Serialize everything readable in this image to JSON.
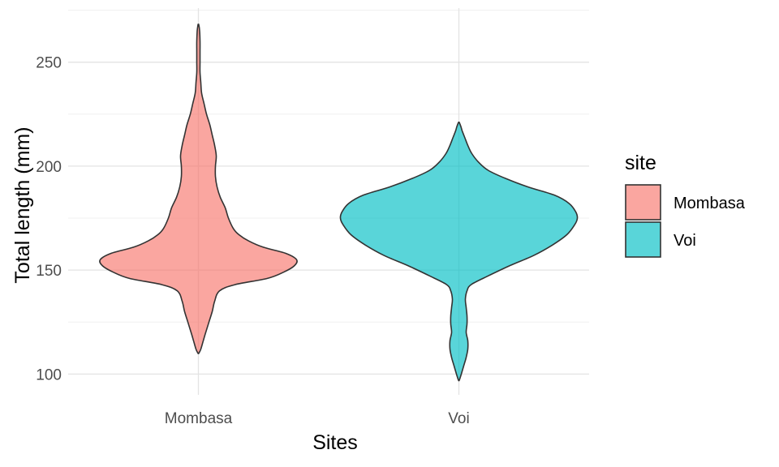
{
  "chart_data": {
    "type": "violin",
    "xlabel": "Sites",
    "ylabel": "Total length (mm)",
    "categories": [
      "Mombasa",
      "Voi"
    ],
    "ylim": [
      90,
      276
    ],
    "yticks": [
      100,
      150,
      200,
      250
    ],
    "grid": true,
    "legend": {
      "title": "site",
      "position": "right",
      "entries": [
        {
          "label": "Mombasa",
          "color": "#F8766D"
        },
        {
          "label": "Voi",
          "color": "#00BFC4"
        }
      ]
    },
    "series": [
      {
        "name": "Mombasa",
        "color": "#F8766D",
        "min": 110,
        "max": 268,
        "profile": [
          [
            110,
            0.5
          ],
          [
            112,
            3
          ],
          [
            116,
            6
          ],
          [
            120,
            9
          ],
          [
            125,
            13
          ],
          [
            130,
            17
          ],
          [
            135,
            20
          ],
          [
            140,
            26
          ],
          [
            143,
            45
          ],
          [
            146,
            85
          ],
          [
            149,
            105
          ],
          [
            152,
            118
          ],
          [
            155,
            121
          ],
          [
            158,
            108
          ],
          [
            161,
            80
          ],
          [
            164,
            62
          ],
          [
            167,
            50
          ],
          [
            170,
            43
          ],
          [
            175,
            37
          ],
          [
            180,
            33
          ],
          [
            185,
            27
          ],
          [
            190,
            23
          ],
          [
            195,
            21
          ],
          [
            200,
            21
          ],
          [
            205,
            22
          ],
          [
            210,
            20
          ],
          [
            215,
            17
          ],
          [
            220,
            14
          ],
          [
            225,
            10
          ],
          [
            230,
            7
          ],
          [
            235,
            4
          ],
          [
            240,
            3
          ],
          [
            245,
            2
          ],
          [
            250,
            2
          ],
          [
            255,
            2
          ],
          [
            260,
            2
          ],
          [
            265,
            1.5
          ],
          [
            268,
            0.5
          ]
        ]
      },
      {
        "name": "Voi",
        "color": "#00BFC4",
        "min": 97,
        "max": 221,
        "profile": [
          [
            97,
            0.5
          ],
          [
            100,
            3
          ],
          [
            104,
            6
          ],
          [
            108,
            9
          ],
          [
            112,
            11
          ],
          [
            116,
            11
          ],
          [
            120,
            9
          ],
          [
            124,
            10
          ],
          [
            128,
            10
          ],
          [
            132,
            9
          ],
          [
            136,
            8
          ],
          [
            140,
            10
          ],
          [
            143,
            15
          ],
          [
            147,
            35
          ],
          [
            152,
            62
          ],
          [
            157,
            92
          ],
          [
            162,
            115
          ],
          [
            167,
            133
          ],
          [
            172,
            143
          ],
          [
            175,
            146
          ],
          [
            178,
            144
          ],
          [
            182,
            136
          ],
          [
            186,
            118
          ],
          [
            190,
            85
          ],
          [
            194,
            58
          ],
          [
            198,
            36
          ],
          [
            202,
            24
          ],
          [
            206,
            16
          ],
          [
            210,
            11
          ],
          [
            214,
            7
          ],
          [
            217,
            4
          ],
          [
            219,
            2.5
          ],
          [
            221,
            0.5
          ]
        ]
      }
    ]
  }
}
